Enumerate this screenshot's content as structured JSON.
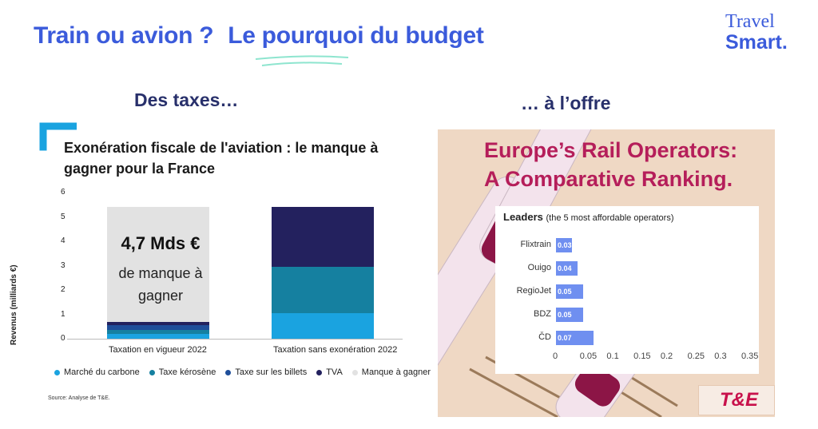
{
  "header": {
    "title_part1": "Train ou avion ?",
    "title_part2": "Le pourquoi du budget",
    "logo_line1": "Travel",
    "logo_line2": "Smart."
  },
  "left": {
    "subheading": "Des taxes…",
    "chart_title": "Exonération fiscale de l'aviation : le manque à gagner pour la France",
    "annotation_big": "4,7 Mds €",
    "annotation_small": "de manque à gagner",
    "source": "Source: Analyse de T&E."
  },
  "right": {
    "subheading": "… à l’offre",
    "panel_title_line1": "Europe’s Rail Operators:",
    "panel_title_line2": "A Comparative Ranking.",
    "leaders_label": "Leaders",
    "leaders_note": "(the 5 most affordable operators)",
    "badge": "T&E"
  },
  "colors": {
    "title_blue": "#3b5bdb",
    "navy": "#28306b",
    "marche_carbone": "#1aa3e0",
    "taxe_kerosene": "#1580a0",
    "taxe_billets": "#1f4e9a",
    "tva": "#23215e",
    "manque": "#e2e2e2",
    "rail_bar": "#6f8ff0",
    "rail_title": "#b51e5a"
  },
  "chart_data": [
    {
      "type": "bar",
      "title": "Exonération fiscale de l'aviation : le manque à gagner pour la France",
      "ylabel": "Revenus (milliards €)",
      "xlabel": "",
      "ylim": [
        0,
        6
      ],
      "yticks": [
        "0",
        "1",
        "2",
        "3",
        "4",
        "5",
        "6"
      ],
      "stacked": true,
      "categories": [
        "Taxation en vigueur 2022",
        "Taxation sans exonération 2022"
      ],
      "series": [
        {
          "name": "Marché du carbone",
          "color": "#1aa3e0",
          "values": [
            0.2,
            1.05
          ]
        },
        {
          "name": "Taxe kérosène",
          "color": "#1580a0",
          "values": [
            0.15,
            1.9
          ]
        },
        {
          "name": "Taxe sur les billets",
          "color": "#1f4e9a",
          "values": [
            0.2,
            0
          ]
        },
        {
          "name": "TVA",
          "color": "#23215e",
          "values": [
            0.15,
            2.45
          ]
        },
        {
          "name": "Manque à gagner",
          "color": "#e2e2e2",
          "values": [
            4.7,
            0
          ]
        }
      ],
      "legend": "bottom"
    },
    {
      "type": "bar",
      "orientation": "horizontal",
      "title": "Europe’s Rail Operators: A Comparative Ranking.",
      "categories": [
        "Flixtrain",
        "Ouigo",
        "RegioJet",
        "BDZ",
        "ČD"
      ],
      "values": [
        0.03,
        0.04,
        0.05,
        0.05,
        0.07
      ],
      "value_labels": [
        "0.03",
        "0.04",
        "0.05",
        "0.05",
        "0.07"
      ],
      "xlim": [
        0,
        0.35
      ],
      "xticks": [
        "0",
        "0.05",
        "0.1",
        "0.15",
        "0.2",
        "0.25",
        "0.3",
        "0.35"
      ]
    }
  ]
}
